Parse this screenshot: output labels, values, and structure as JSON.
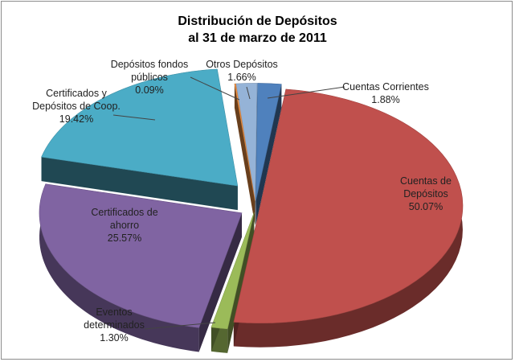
{
  "chart_data": {
    "type": "pie",
    "title_line1": "Distribución de Depósitos",
    "title_line2": "al 31 de marzo de 2011",
    "slices": [
      {
        "lines": [
          "Cuentas Corrientes",
          "1.88%"
        ],
        "value": 1.88,
        "color": "#4f81bd"
      },
      {
        "lines": [
          "Cuentas de",
          "Depósitos",
          "50.07%"
        ],
        "value": 50.07,
        "color": "#c0504d"
      },
      {
        "lines": [
          "Eventos",
          "determinados",
          "1.30%"
        ],
        "value": 1.3,
        "color": "#9bbb59"
      },
      {
        "lines": [
          "Certificados de",
          "ahorro",
          "25.57%"
        ],
        "value": 25.57,
        "color": "#8064a2"
      },
      {
        "lines": [
          "Certificados y",
          "Depósitos de Coop.",
          "19.42%"
        ],
        "value": 19.42,
        "color": "#4bacc6"
      },
      {
        "lines": [
          "Depósitos fondos",
          "públicos",
          "0.09%"
        ],
        "value": 0.09,
        "color": "#f79646"
      },
      {
        "lines": [
          "Otros Depósitos",
          "1.66%"
        ],
        "value": 1.66,
        "color": "#95b3d7"
      }
    ]
  }
}
